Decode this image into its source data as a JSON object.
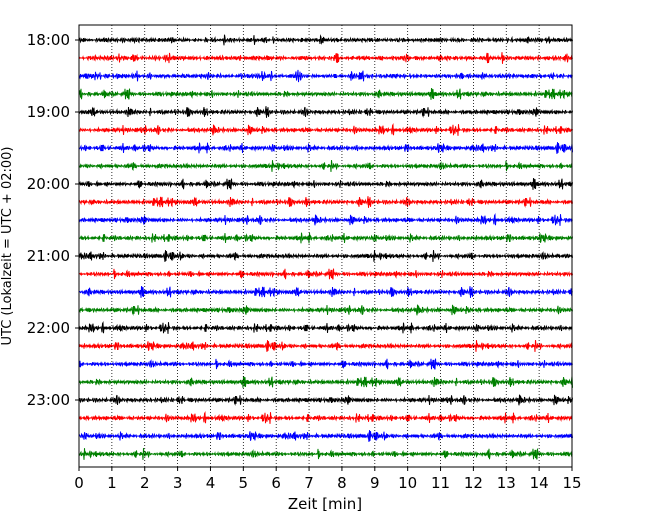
{
  "chart_data": {
    "type": "line",
    "title": "",
    "xlabel": "Zeit  [min]",
    "ylabel": "UTC (Lokalzeit = UTC + 02:00)",
    "xlim": [
      0,
      15
    ],
    "x_ticks": [
      0,
      1,
      2,
      3,
      4,
      5,
      6,
      7,
      8,
      9,
      10,
      11,
      12,
      13,
      14,
      15
    ],
    "x_tick_labels": [
      "0",
      "1",
      "2",
      "3",
      "4",
      "5",
      "6",
      "7",
      "8",
      "9",
      "10",
      "11",
      "12",
      "13",
      "14",
      "15"
    ],
    "y_tick_labels": [
      "18:00",
      "19:00",
      "20:00",
      "21:00",
      "22:00",
      "23:00"
    ],
    "trace_start_times": [
      "18:00",
      "18:15",
      "18:30",
      "18:45",
      "19:00",
      "19:15",
      "19:30",
      "19:45",
      "20:00",
      "20:15",
      "20:30",
      "20:45",
      "21:00",
      "21:15",
      "21:30",
      "21:45",
      "22:00",
      "22:15",
      "22:30",
      "22:45",
      "23:00",
      "23:15",
      "23:30",
      "23:45"
    ],
    "trace_colors": [
      "#000000",
      "#ff0000",
      "#0000ff",
      "#008000"
    ],
    "grid": "vertical dotted at minute ticks"
  }
}
